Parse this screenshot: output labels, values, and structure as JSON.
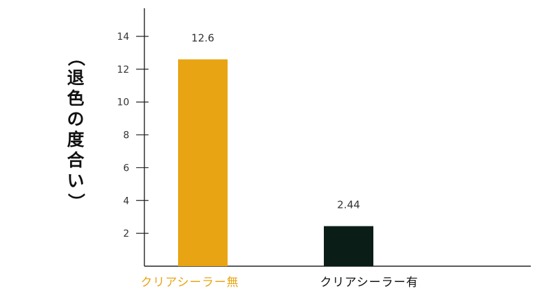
{
  "chart_data": {
    "type": "bar",
    "title": "",
    "xlabel": "",
    "ylabel": "（退色の度合い）",
    "categories": [
      "クリアシーラー無",
      "クリアシーラー有"
    ],
    "values": [
      12.6,
      2.44
    ],
    "data_labels": [
      "12.6",
      "2.44"
    ],
    "category_colors": [
      "#e8a515",
      "#111111"
    ],
    "bar_colors": [
      "#e8a412",
      "#0b1d17"
    ],
    "yticks": [
      2,
      4,
      6,
      8,
      10,
      12,
      14
    ],
    "ylim": [
      0,
      15
    ],
    "grid": false,
    "legend": "none"
  }
}
